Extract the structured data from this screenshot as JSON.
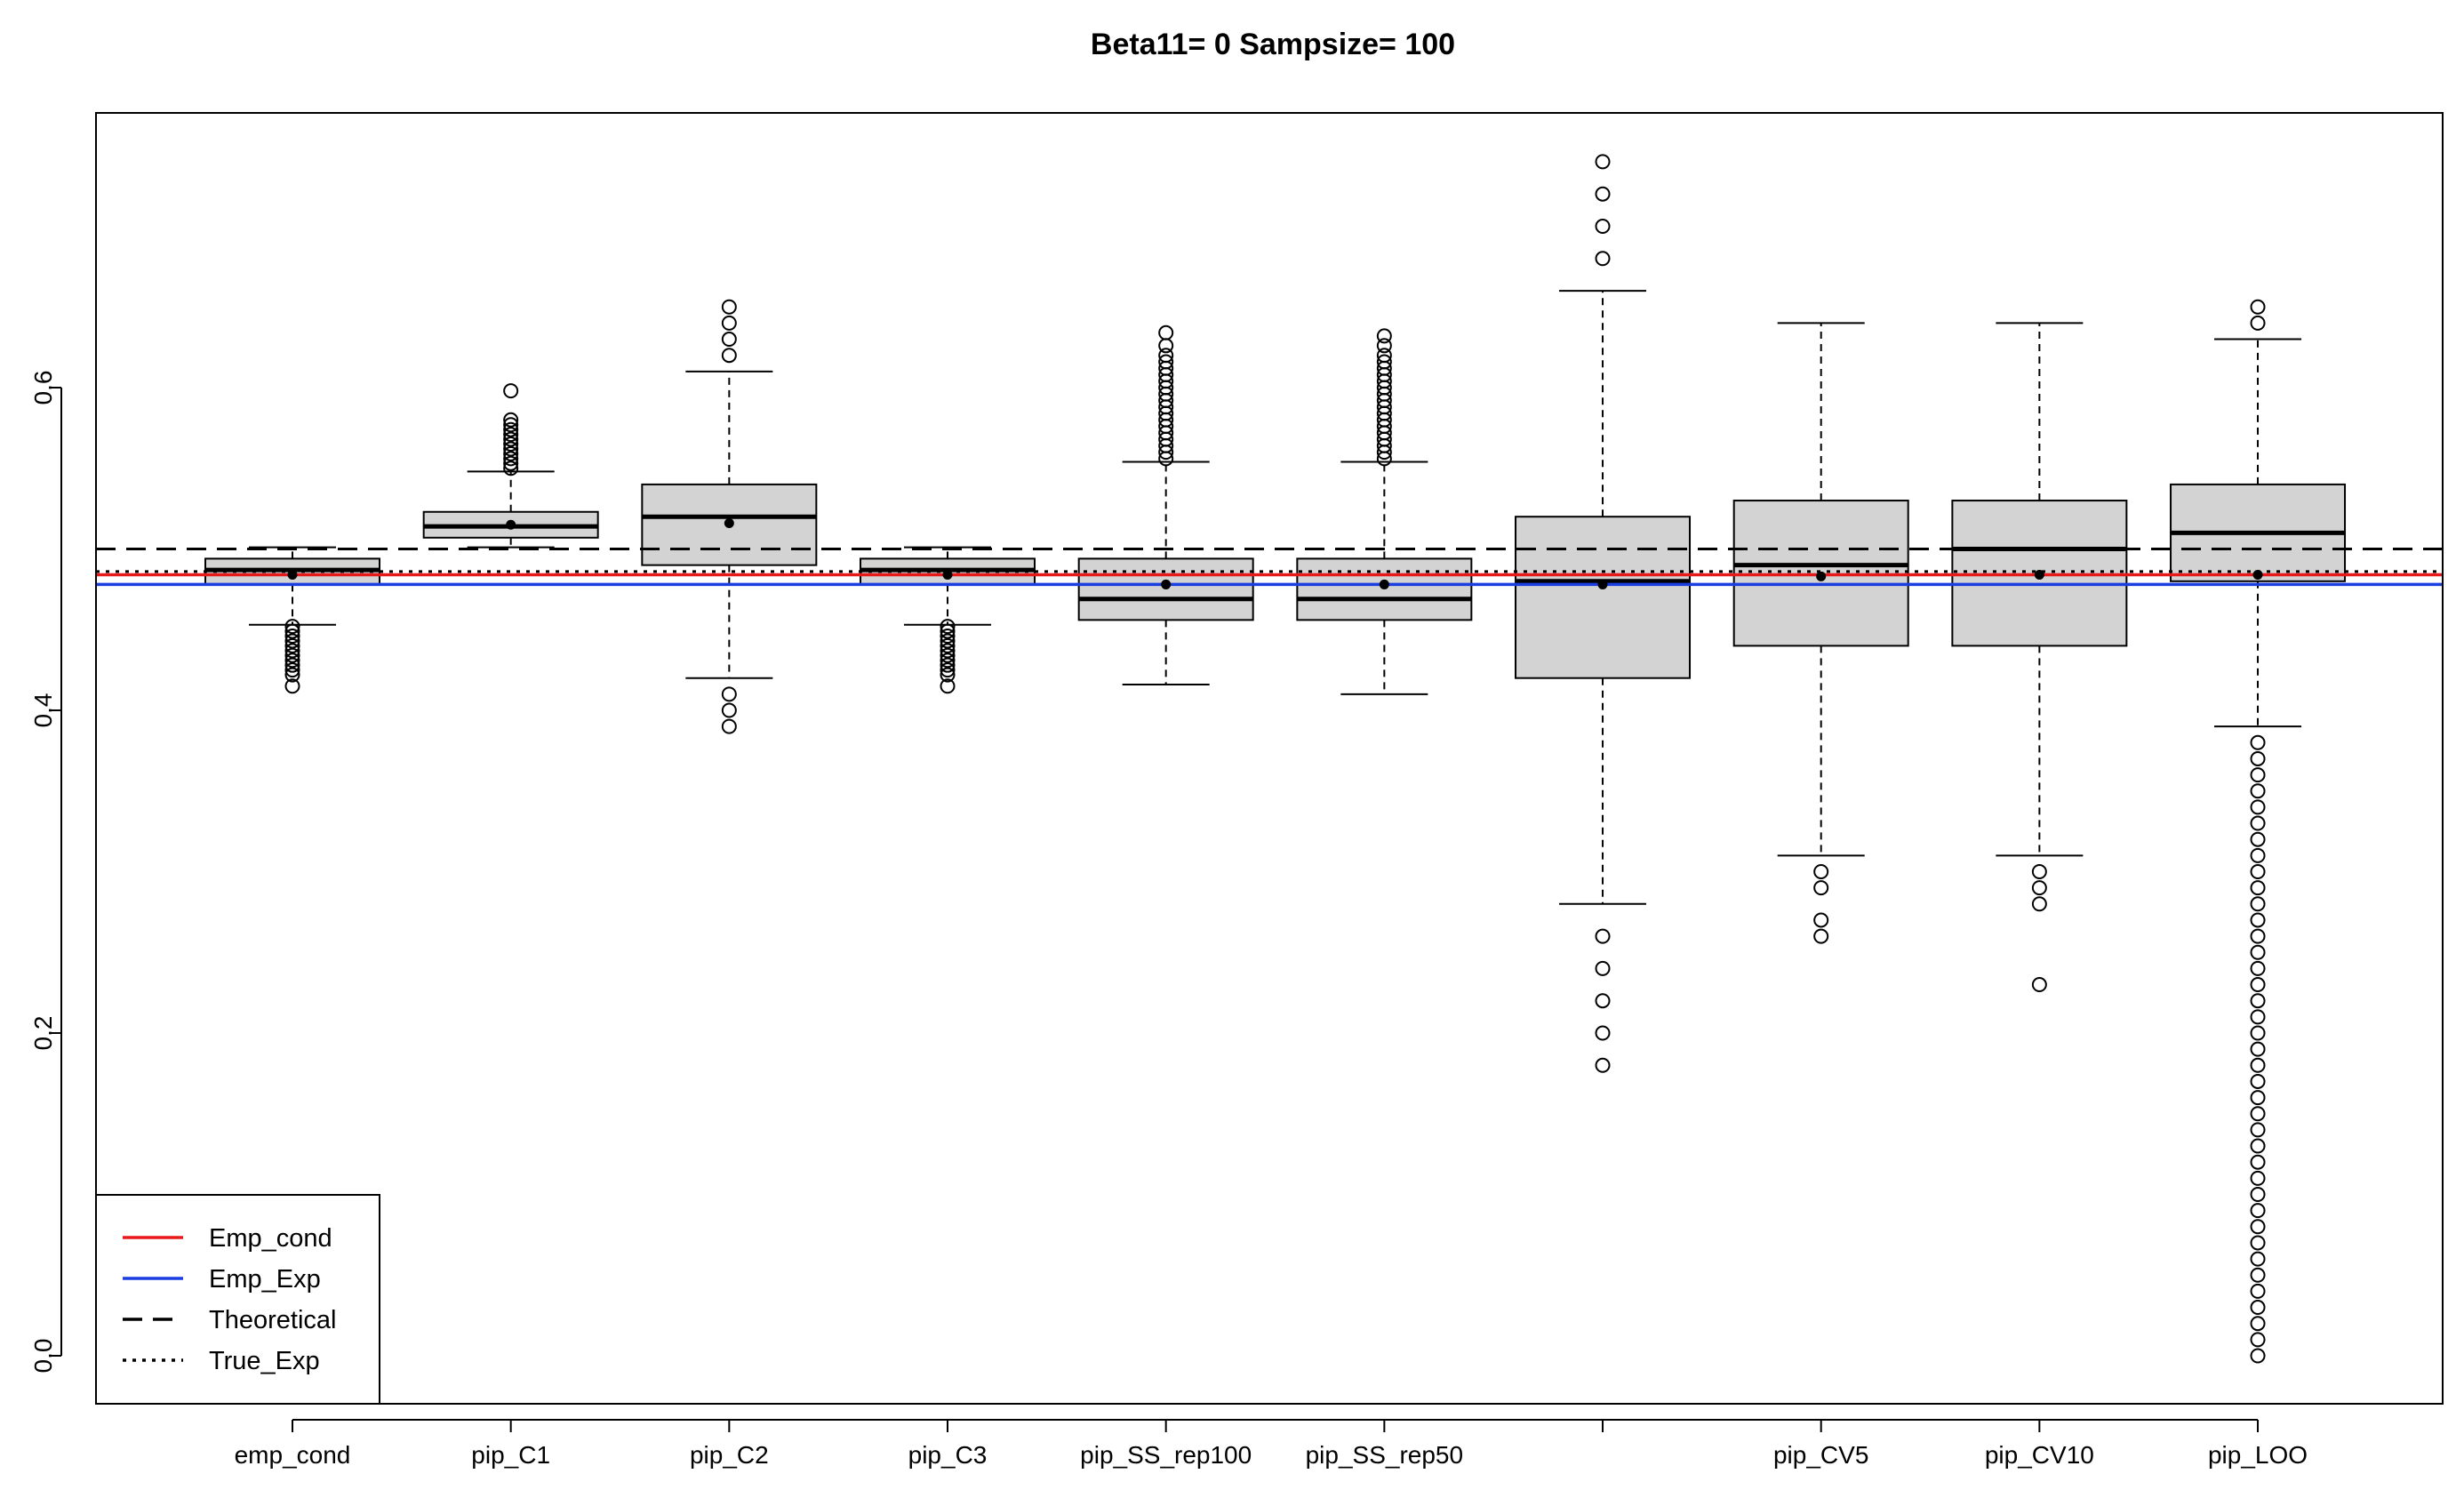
{
  "chart_data": {
    "type": "box",
    "title": "Beta11= 0   Sampsize= 100",
    "xlabel": "",
    "ylabel": "",
    "ylim": [
      -0.03,
      0.77
    ],
    "yticks": [
      "0.0",
      "0.2",
      "0.4",
      "0.6"
    ],
    "ytick_values": [
      0.0,
      0.2,
      0.4,
      0.6
    ],
    "categories": [
      "emp_cond",
      "pip_C1",
      "pip_C2",
      "pip_C3",
      "pip_SS_rep100",
      "pip_SS_rep50",
      "",
      "pip_CV5",
      "pip_CV10",
      "pip_LOO"
    ],
    "boxes": [
      {
        "whisker_low": 0.453,
        "q1": 0.478,
        "median": 0.487,
        "q3": 0.494,
        "whisker_high": 0.501,
        "mean": 0.484,
        "outliers": [
          0.452,
          0.449,
          0.446,
          0.443,
          0.44,
          0.437,
          0.434,
          0.431,
          0.428,
          0.425,
          0.422,
          0.415
        ]
      },
      {
        "whisker_low": 0.501,
        "q1": 0.507,
        "median": 0.514,
        "q3": 0.523,
        "whisker_high": 0.548,
        "mean": 0.515,
        "outliers": [
          0.55,
          0.553,
          0.556,
          0.559,
          0.562,
          0.565,
          0.568,
          0.571,
          0.574,
          0.577,
          0.58,
          0.598
        ]
      },
      {
        "whisker_low": 0.42,
        "q1": 0.49,
        "median": 0.52,
        "q3": 0.54,
        "whisker_high": 0.61,
        "mean": 0.516,
        "outliers": [
          0.41,
          0.4,
          0.39,
          0.62,
          0.63,
          0.64,
          0.65
        ]
      },
      {
        "whisker_low": 0.453,
        "q1": 0.478,
        "median": 0.487,
        "q3": 0.494,
        "whisker_high": 0.501,
        "mean": 0.484,
        "outliers": [
          0.452,
          0.449,
          0.446,
          0.443,
          0.44,
          0.437,
          0.434,
          0.431,
          0.428,
          0.425,
          0.422,
          0.415
        ]
      },
      {
        "whisker_low": 0.416,
        "q1": 0.456,
        "median": 0.469,
        "q3": 0.494,
        "whisker_high": 0.554,
        "mean": 0.478,
        "outliers": [
          0.556,
          0.56,
          0.564,
          0.568,
          0.572,
          0.576,
          0.58,
          0.584,
          0.588,
          0.592,
          0.596,
          0.6,
          0.604,
          0.608,
          0.612,
          0.616,
          0.62,
          0.626,
          0.634
        ]
      },
      {
        "whisker_low": 0.41,
        "q1": 0.456,
        "median": 0.469,
        "q3": 0.494,
        "whisker_high": 0.554,
        "mean": 0.478,
        "outliers": [
          0.556,
          0.56,
          0.564,
          0.568,
          0.572,
          0.576,
          0.58,
          0.584,
          0.588,
          0.592,
          0.596,
          0.6,
          0.604,
          0.608,
          0.612,
          0.616,
          0.62,
          0.626,
          0.632
        ]
      },
      {
        "whisker_low": 0.28,
        "q1": 0.42,
        "median": 0.48,
        "q3": 0.52,
        "whisker_high": 0.66,
        "mean": 0.478,
        "outliers": [
          0.26,
          0.24,
          0.22,
          0.2,
          0.18,
          0.68,
          0.7,
          0.72,
          0.74
        ]
      },
      {
        "whisker_low": 0.31,
        "q1": 0.44,
        "median": 0.49,
        "q3": 0.53,
        "whisker_high": 0.64,
        "mean": 0.483,
        "outliers": [
          0.3,
          0.29,
          0.27,
          0.26
        ]
      },
      {
        "whisker_low": 0.31,
        "q1": 0.44,
        "median": 0.5,
        "q3": 0.53,
        "whisker_high": 0.64,
        "mean": 0.484,
        "outliers": [
          0.3,
          0.29,
          0.28,
          0.23
        ]
      },
      {
        "whisker_low": 0.39,
        "q1": 0.48,
        "median": 0.51,
        "q3": 0.54,
        "whisker_high": 0.63,
        "mean": 0.484,
        "outliers": [
          0.64,
          0.65,
          0.38,
          0.37,
          0.36,
          0.35,
          0.34,
          0.33,
          0.32,
          0.31,
          0.3,
          0.29,
          0.28,
          0.27,
          0.26,
          0.25,
          0.24,
          0.23,
          0.22,
          0.21,
          0.2,
          0.19,
          0.18,
          0.17,
          0.16,
          0.15,
          0.14,
          0.13,
          0.12,
          0.11,
          0.1,
          0.09,
          0.08,
          0.07,
          0.06,
          0.05,
          0.04,
          0.03,
          0.02,
          0.01,
          0.0
        ]
      }
    ],
    "reference_lines": [
      {
        "name": "Emp_cond",
        "value": 0.484,
        "color": "#e8191b",
        "style": "solid"
      },
      {
        "name": "Emp_Exp",
        "value": 0.478,
        "color": "#1a3fe0",
        "style": "solid"
      },
      {
        "name": "Theoretical",
        "value": 0.5,
        "color": "#000000",
        "style": "dashed"
      },
      {
        "name": "True_Exp",
        "value": 0.486,
        "color": "#000000",
        "style": "dotted"
      }
    ],
    "legend": {
      "position": "bottom-left",
      "entries": [
        "Emp_cond",
        "Emp_Exp",
        "Theoretical",
        "True_Exp"
      ]
    },
    "box_fill_color": "#d3d3d3"
  }
}
